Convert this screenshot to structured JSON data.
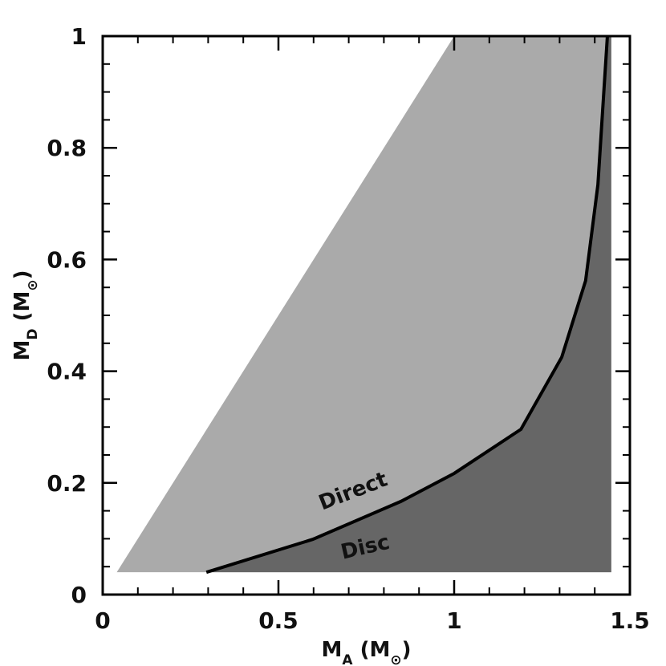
{
  "chart_data": {
    "type": "area",
    "xlabel": [
      "M",
      "A",
      " (M",
      "⊙",
      ")"
    ],
    "ylabel": [
      "M",
      "D",
      " (M",
      "⊙",
      ")"
    ],
    "xlim": [
      0,
      1.5
    ],
    "ylim": [
      0,
      1
    ],
    "xticks": [
      0,
      0.5,
      1,
      1.5
    ],
    "yticks": [
      0,
      0.2,
      0.4,
      0.6,
      0.8,
      1
    ],
    "xminorticks": [
      0.1,
      0.2,
      0.3,
      0.4,
      0.6,
      0.7,
      0.8,
      0.9,
      1.1,
      1.2,
      1.3,
      1.4
    ],
    "yminorticks": [
      0.05,
      0.1,
      0.15,
      0.25,
      0.3,
      0.35,
      0.45,
      0.5,
      0.55,
      0.65,
      0.7,
      0.75,
      0.85,
      0.9,
      0.95
    ],
    "series": [
      {
        "name": "Direct",
        "color": "#aaaaaa",
        "closed": true,
        "x": [
          0.04,
          1.0,
          1.447,
          1.447
        ],
        "y": [
          0.04,
          1.0,
          1.0,
          0.04
        ]
      },
      {
        "name": "Disc",
        "color": "#666666",
        "closed": true,
        "x": [
          0.295,
          0.598,
          0.849,
          1.0,
          1.19,
          1.306,
          1.374,
          1.409,
          1.425,
          1.436,
          1.447,
          1.447
        ],
        "y": [
          0.04,
          0.099,
          0.167,
          0.217,
          0.296,
          0.425,
          0.562,
          0.734,
          0.892,
          1.0,
          1.0,
          0.04
        ]
      },
      {
        "color": "#000000",
        "closed": false,
        "x": [
          0.295,
          0.598,
          0.849,
          1.0,
          1.19,
          1.306,
          1.374,
          1.409,
          1.425,
          1.436
        ],
        "y": [
          0.04,
          0.099,
          0.167,
          0.217,
          0.296,
          0.425,
          0.562,
          0.734,
          0.892,
          1.0
        ]
      }
    ]
  }
}
